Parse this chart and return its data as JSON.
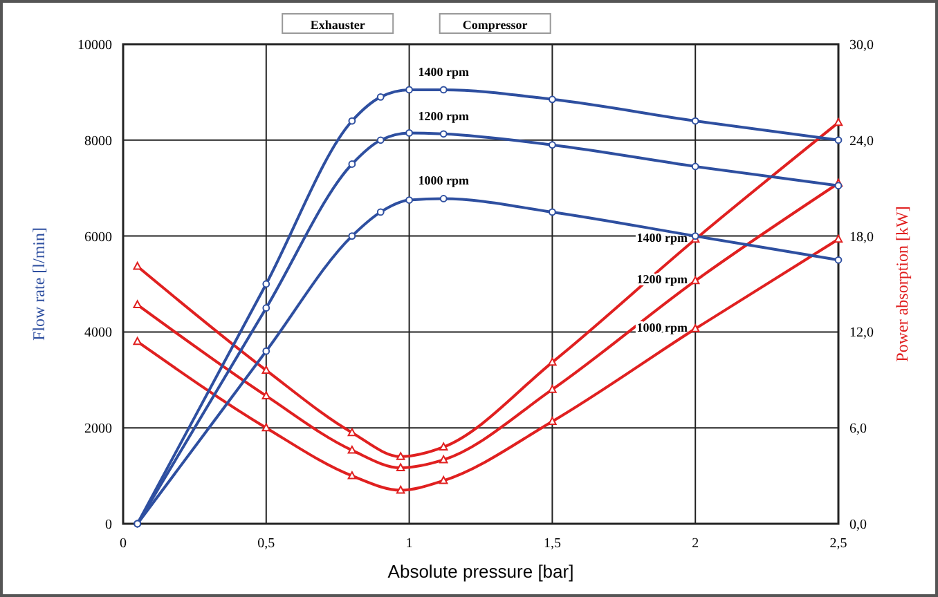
{
  "chart_data": {
    "type": "line",
    "xlabel": "Absolute pressure [bar]",
    "ylabel": "Flow rate [l/min]",
    "y2label": "Power absorption [kW]",
    "xlim": [
      0,
      2.5
    ],
    "xticks": [
      0,
      {
        "value": 0.5,
        "label": "0,5"
      },
      1,
      {
        "value": 1.5,
        "label": "1,5"
      },
      2,
      {
        "value": 2.5,
        "label": "2,5"
      }
    ],
    "ylim": [
      0,
      10000
    ],
    "yticks": [
      0,
      2000,
      4000,
      6000,
      8000,
      10000
    ],
    "y2lim": [
      0,
      30
    ],
    "y2ticks": [
      {
        "value": 0,
        "label": "0,0"
      },
      {
        "value": 6,
        "label": "6,0"
      },
      {
        "value": 12,
        "label": "12,0"
      },
      {
        "value": 18,
        "label": "18,0"
      },
      {
        "value": 24,
        "label": "24,0"
      },
      {
        "value": 30,
        "label": "30,0"
      }
    ],
    "grid": true,
    "line_style": "solid",
    "series": [
      {
        "name": "1400 rpm",
        "color": "#2e4fa0",
        "marker": "circle",
        "x": [
          0.05,
          0.5,
          0.8,
          0.9,
          1.0,
          1.12,
          1.5,
          2.0,
          2.5
        ],
        "values": [
          0,
          5000,
          8400,
          8900,
          9050,
          9050,
          8850,
          8400,
          8000
        ]
      },
      {
        "name": "1200 rpm",
        "color": "#2e4fa0",
        "marker": "circle",
        "x": [
          0.05,
          0.5,
          0.8,
          0.9,
          1.0,
          1.12,
          1.5,
          2.0,
          2.5
        ],
        "values": [
          0,
          4500,
          7500,
          8000,
          8150,
          8130,
          7900,
          7450,
          7050
        ]
      },
      {
        "name": "1000 rpm",
        "color": "#2e4fa0",
        "marker": "circle",
        "x": [
          0.05,
          0.5,
          0.8,
          0.9,
          1.0,
          1.12,
          1.5,
          2.0,
          2.5
        ],
        "values": [
          0,
          3600,
          6000,
          6500,
          6750,
          6780,
          6500,
          6000,
          5500
        ]
      },
      {
        "name": "1400 rpm",
        "color": "#e02020",
        "marker": "triangle",
        "axis": "y2",
        "x": [
          0.05,
          0.5,
          0.8,
          0.97,
          1.12,
          1.5,
          2.0,
          2.5
        ],
        "values": [
          16.1,
          9.6,
          5.7,
          4.2,
          4.8,
          10.1,
          17.8,
          25.1
        ]
      },
      {
        "name": "1200 rpm",
        "color": "#e02020",
        "marker": "triangle",
        "axis": "y2",
        "x": [
          0.05,
          0.5,
          0.8,
          0.97,
          1.12,
          1.5,
          2.0,
          2.5
        ],
        "values": [
          13.7,
          8.0,
          4.6,
          3.5,
          4.0,
          8.4,
          15.2,
          21.3
        ]
      },
      {
        "name": "1000 rpm",
        "color": "#e02020",
        "marker": "triangle",
        "axis": "y2",
        "x": [
          0.05,
          0.5,
          0.8,
          0.97,
          1.12,
          1.5,
          2.0,
          2.5
        ],
        "values": [
          11.4,
          6.0,
          3.0,
          2.1,
          2.7,
          6.4,
          12.2,
          17.8
        ]
      }
    ],
    "annotations": [
      "Exhauster",
      "Compressor"
    ]
  }
}
